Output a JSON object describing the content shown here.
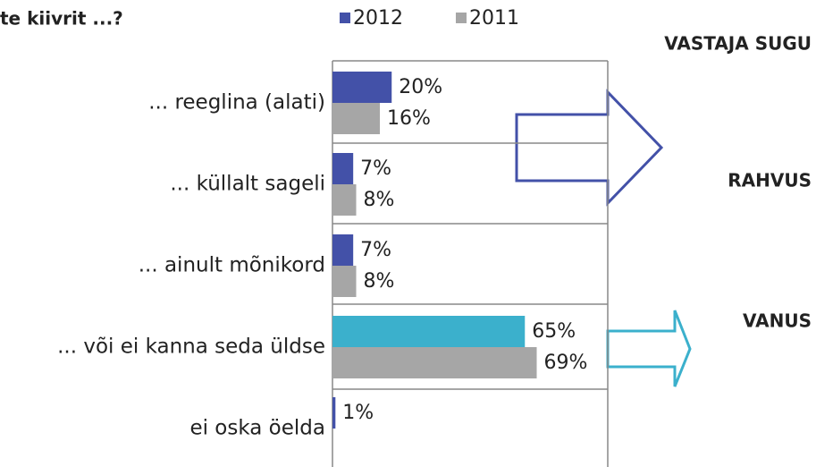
{
  "chart_data": {
    "type": "barh",
    "title": "te kiivrit ...?",
    "categories": [
      "... reeglina (alati)",
      "... küllalt sageli",
      "... ainult mõnikord",
      "... või ei kanna seda üldse",
      "ei oska öelda"
    ],
    "series": [
      {
        "name": "2012",
        "color": "#4351a8",
        "point_colors": [
          "#4351a8",
          "#4351a8",
          "#4351a8",
          "#3bb0cc",
          "#4351a8"
        ],
        "values": [
          20,
          7,
          7,
          65,
          1
        ],
        "value_labels": [
          "20%",
          "7%",
          "7%",
          "65%",
          "1%"
        ]
      },
      {
        "name": "2011",
        "color": "#a6a6a6",
        "values": [
          16,
          8,
          8,
          69,
          null
        ],
        "value_labels": [
          "16%",
          "8%",
          "8%",
          "69%",
          null
        ]
      }
    ],
    "xlim": [
      0,
      93
    ],
    "annotations": [
      "VASTAJA SUGU",
      "RAHVUS",
      "VANUS"
    ]
  }
}
